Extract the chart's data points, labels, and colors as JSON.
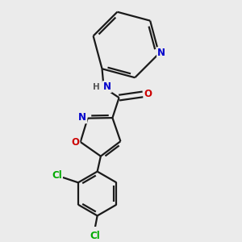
{
  "bg_color": "#ebebeb",
  "bond_color": "#1a1a1a",
  "bond_width": 1.6,
  "atom_colors": {
    "N": "#0000cc",
    "O": "#cc0000",
    "Cl": "#00aa00",
    "H": "#555555"
  },
  "font_size": 8.5,
  "font_size_H": 7.5
}
